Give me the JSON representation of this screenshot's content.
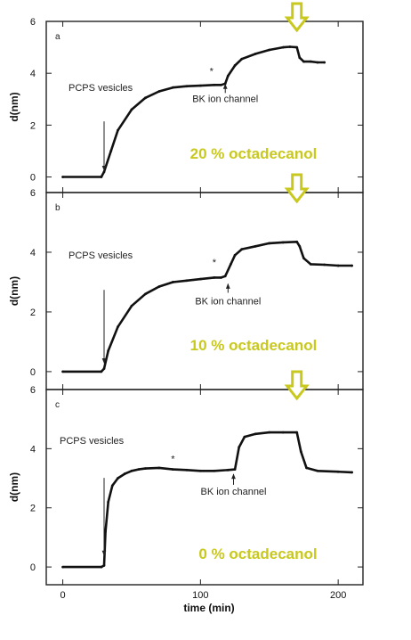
{
  "highlight_color": "#c8c81e",
  "icons": {
    "marker": "down-arrow-icon"
  },
  "chart_data": [
    {
      "type": "line",
      "panel_label": "a",
      "ylabel": "d(nm)",
      "xlim": [
        -12,
        218
      ],
      "ylim": [
        -0.6,
        6
      ],
      "yticks": [
        0,
        2,
        4,
        6
      ],
      "ytick_labels": [
        "0",
        "2",
        "4",
        "6"
      ],
      "series": [
        {
          "x": [
            0,
            28,
            30,
            35,
            40,
            50,
            60,
            70,
            80,
            90,
            100,
            110,
            115,
            118,
            120,
            125,
            130,
            140,
            150,
            160,
            165,
            170,
            172,
            175,
            180,
            185,
            190
          ],
          "values": [
            0,
            0,
            0.2,
            1.0,
            1.8,
            2.6,
            3.05,
            3.3,
            3.45,
            3.5,
            3.52,
            3.55,
            3.55,
            3.6,
            3.9,
            4.3,
            4.55,
            4.75,
            4.9,
            5.0,
            5.02,
            5.0,
            4.6,
            4.45,
            4.45,
            4.42,
            4.42
          ]
        }
      ],
      "annotations": [
        {
          "text": "PCPS vesicles",
          "x": 30,
          "y": 0.15
        },
        {
          "text": "BK ion channel",
          "x": 118,
          "y": 3.65
        }
      ],
      "asterisk": {
        "text": "*",
        "x": 108,
        "y": 3.95
      },
      "highlight_label": "20 % octadecanol",
      "marker_x": 170
    },
    {
      "type": "line",
      "panel_label": "b",
      "ylabel": "d(nm)",
      "xlim": [
        -12,
        218
      ],
      "ylim": [
        -0.6,
        6
      ],
      "yticks": [
        0,
        2,
        4,
        6
      ],
      "ytick_labels": [
        "0",
        "2",
        "4",
        "6"
      ],
      "series": [
        {
          "x": [
            0,
            28,
            30,
            33,
            40,
            50,
            60,
            70,
            80,
            90,
            100,
            110,
            115,
            118,
            122,
            125,
            130,
            140,
            150,
            160,
            170,
            172,
            175,
            180,
            190,
            200,
            210
          ],
          "values": [
            0,
            0,
            0.1,
            0.7,
            1.5,
            2.2,
            2.6,
            2.85,
            3.0,
            3.05,
            3.1,
            3.15,
            3.15,
            3.2,
            3.6,
            3.9,
            4.1,
            4.2,
            4.3,
            4.33,
            4.35,
            4.2,
            3.8,
            3.6,
            3.58,
            3.55,
            3.55
          ]
        }
      ],
      "annotations": [
        {
          "text": "PCPS vesicles",
          "x": 30,
          "y": 0.2
        },
        {
          "text": "BK ion channel",
          "x": 120,
          "y": 3.0
        }
      ],
      "asterisk": {
        "text": "*",
        "x": 110,
        "y": 3.55
      },
      "highlight_label": "10 % octadecanol",
      "marker_x": 170
    },
    {
      "type": "line",
      "panel_label": "c",
      "ylabel": "d(nm)",
      "xlabel": "time (min)",
      "xlim": [
        -12,
        218
      ],
      "ylim": [
        -0.6,
        6
      ],
      "yticks": [
        0,
        2,
        4,
        6
      ],
      "ytick_labels": [
        "0",
        "2",
        "4",
        "6"
      ],
      "xticks": [
        0,
        100,
        200
      ],
      "xtick_labels": [
        "0",
        "100",
        "200"
      ],
      "series": [
        {
          "x": [
            0,
            28,
            30,
            31,
            33,
            36,
            40,
            45,
            50,
            55,
            60,
            70,
            80,
            90,
            100,
            110,
            120,
            125,
            128,
            132,
            140,
            150,
            160,
            170,
            173,
            177,
            185,
            200,
            210
          ],
          "values": [
            0,
            0,
            0.05,
            1.2,
            2.2,
            2.75,
            3.0,
            3.15,
            3.25,
            3.3,
            3.33,
            3.35,
            3.3,
            3.28,
            3.25,
            3.25,
            3.28,
            3.3,
            4.05,
            4.4,
            4.5,
            4.55,
            4.55,
            4.55,
            3.9,
            3.35,
            3.25,
            3.22,
            3.2
          ]
        }
      ],
      "annotations": [
        {
          "text": "PCPS vesicles",
          "x": 30,
          "y": 0.3
        },
        {
          "text": "BK ion channel",
          "x": 124,
          "y": 3.2
        }
      ],
      "asterisk": {
        "text": "*",
        "x": 80,
        "y": 3.55
      },
      "highlight_label": "0 % octadecanol",
      "marker_x": 170
    }
  ]
}
